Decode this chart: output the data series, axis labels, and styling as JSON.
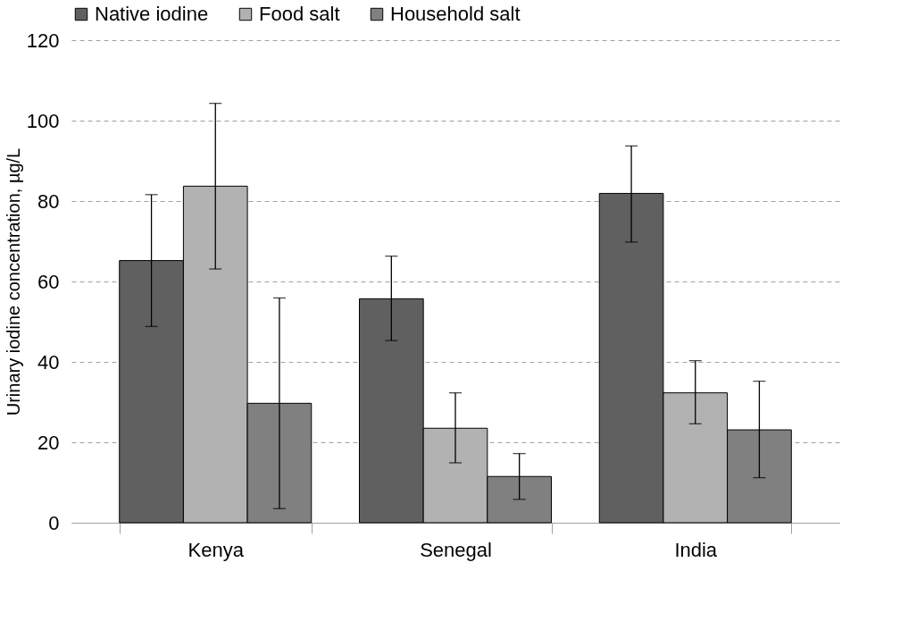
{
  "chart_data": {
    "type": "bar",
    "ylabel": "Urinary iodine concentration, µg/L",
    "categories": [
      "Kenya",
      "Senegal",
      "India"
    ],
    "series": [
      {
        "name": "Native iodine",
        "color": "#606060",
        "values": [
          65.2,
          55.7,
          81.9
        ],
        "errors": [
          [
            48.8,
            81.6
          ],
          [
            45.3,
            66.3
          ],
          [
            69.8,
            93.7
          ]
        ]
      },
      {
        "name": "Food salt",
        "color": "#b2b2b2",
        "values": [
          83.7,
          23.5,
          32.3
        ],
        "errors": [
          [
            63.1,
            104.3
          ],
          [
            14.9,
            32.3
          ],
          [
            24.6,
            40.3
          ]
        ]
      },
      {
        "name": "Household salt",
        "color": "#808080",
        "values": [
          29.7,
          11.5,
          23.1
        ],
        "errors": [
          [
            3.5,
            55.9
          ],
          [
            5.8,
            17.2
          ],
          [
            11.2,
            35.2
          ]
        ]
      }
    ],
    "ylim": [
      0,
      120
    ],
    "yticks": [
      0,
      20,
      40,
      60,
      80,
      100,
      120
    ],
    "grid": "y",
    "legend": "top"
  }
}
